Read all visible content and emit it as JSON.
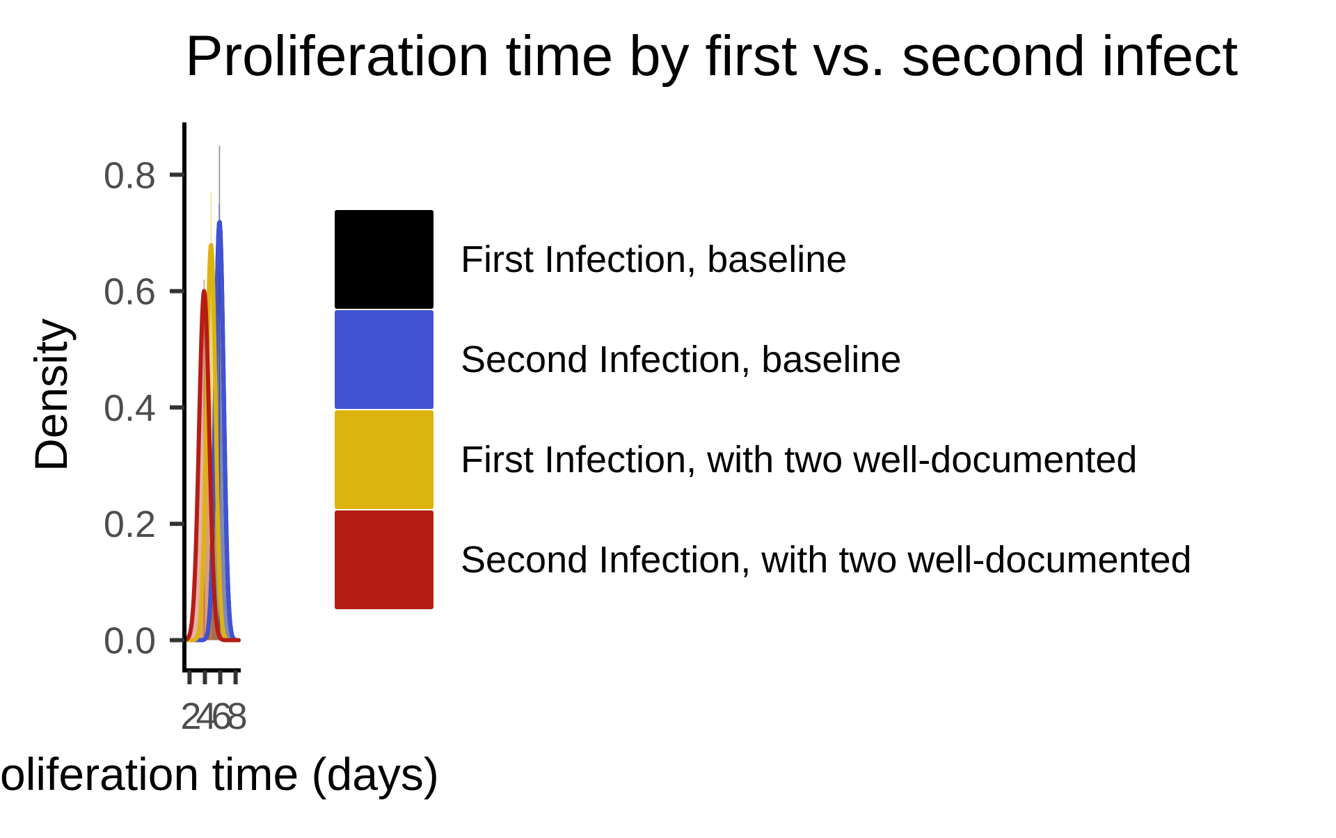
{
  "chart_data": {
    "type": "area",
    "title": "Proliferation time by first vs. second infect",
    "xlabel": "oliferation time (days)",
    "ylabel": "Density",
    "x_ticks": [
      2,
      4,
      6,
      8
    ],
    "x_tick_labels": [
      "2",
      "4",
      "6",
      "8"
    ],
    "y_ticks": [
      0.0,
      0.2,
      0.4,
      0.6,
      0.8
    ],
    "y_tick_labels": [
      "0.0",
      "0.2",
      "0.4",
      "0.6",
      "0.8"
    ],
    "xlim": [
      1.6,
      8.4
    ],
    "ylim": [
      -0.04,
      0.89
    ],
    "grid": false,
    "legend_position": "right",
    "series": [
      {
        "name": "First Infection, baseline",
        "color": "#000000",
        "curve": {
          "peak_x": 5.9,
          "peak_density": 0.72,
          "sd": 0.55
        },
        "histogram_bar": {
          "x": 5.9,
          "height": 0.85
        }
      },
      {
        "name": "Second Infection, baseline",
        "color": "#4053d3",
        "curve": {
          "peak_x": 5.9,
          "peak_density": 0.72,
          "sd": 0.55
        },
        "histogram_bar": {
          "x": 5.85,
          "height": 0.75
        }
      },
      {
        "name": "First Infection, with two well-documented",
        "color": "#ddb310",
        "curve": {
          "peak_x": 4.8,
          "peak_density": 0.68,
          "sd": 0.58
        },
        "histogram_bar": {
          "x": 4.8,
          "height": 0.77
        }
      },
      {
        "name": "Second Infection, with two well-documented",
        "color": "#b51d14",
        "curve": {
          "peak_x": 3.9,
          "peak_density": 0.6,
          "sd": 0.66
        },
        "histogram_bar": {
          "x": 3.9,
          "height": 0.62
        }
      }
    ]
  }
}
